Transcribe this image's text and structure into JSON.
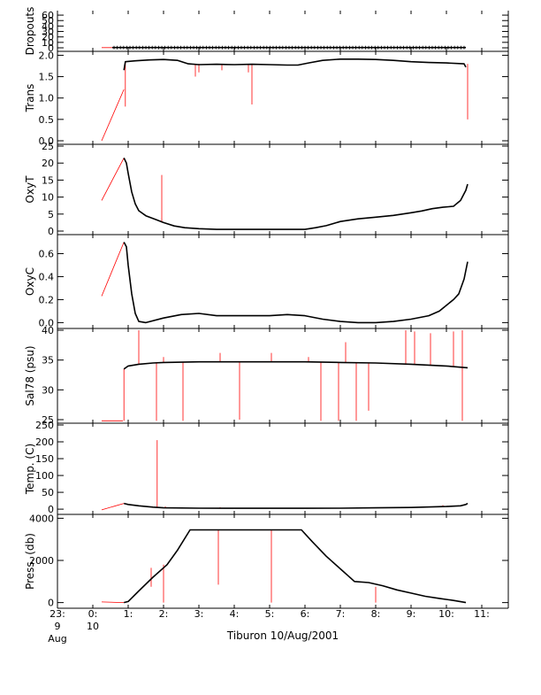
{
  "chart_data": {
    "type": "line",
    "caption": "Tiburon 10/Aug/2001",
    "time_axis": {
      "range_hours": [
        23.0,
        11.75
      ],
      "ticks": [
        {
          "hour": 23,
          "line1": "23:",
          "line2": "9",
          "line3": "Aug"
        },
        {
          "hour": 0,
          "line1": "0:",
          "line2": "10",
          "line3": ""
        },
        {
          "hour": 1,
          "line1": "1:",
          "line2": "",
          "line3": ""
        },
        {
          "hour": 2,
          "line1": "2:",
          "line2": "",
          "line3": ""
        },
        {
          "hour": 3,
          "line1": "3:",
          "line2": "",
          "line3": ""
        },
        {
          "hour": 4,
          "line1": "4:",
          "line2": "",
          "line3": ""
        },
        {
          "hour": 5,
          "line1": "5:",
          "line2": "",
          "line3": ""
        },
        {
          "hour": 6,
          "line1": "6:",
          "line2": "",
          "line3": ""
        },
        {
          "hour": 7,
          "line1": "7:",
          "line2": "",
          "line3": ""
        },
        {
          "hour": 8,
          "line1": "8:",
          "line2": "",
          "line3": ""
        },
        {
          "hour": 9,
          "line1": "9:",
          "line2": "",
          "line3": ""
        },
        {
          "hour": 10,
          "line1": "10:",
          "line2": "",
          "line3": ""
        },
        {
          "hour": 11,
          "line1": "11:",
          "line2": "",
          "line3": ""
        }
      ]
    },
    "colors": {
      "clean": "#000000",
      "raw": "#ff0000",
      "frame": "#000000"
    },
    "panels": [
      {
        "id": "dropouts",
        "ylabel": "Dropouts",
        "ylim": [
          0,
          65
        ],
        "yticks": [
          "0",
          "10",
          "20",
          "30",
          "40",
          "50",
          "60"
        ],
        "ytick_values": [
          0,
          10,
          20,
          30,
          40,
          50,
          60
        ],
        "clean": [
          [
            0.55,
            0.5
          ],
          [
            1.0,
            0.5
          ],
          [
            2.0,
            0.5
          ],
          [
            3.0,
            0.5
          ],
          [
            4.0,
            0.5
          ],
          [
            5.0,
            0.5
          ],
          [
            6.0,
            0.5
          ],
          [
            7.0,
            0.5
          ],
          [
            8.0,
            0.5
          ],
          [
            9.0,
            0.5
          ],
          [
            10.0,
            0.5
          ],
          [
            10.55,
            0.5
          ]
        ],
        "raw": [
          [
            0.25,
            0.3
          ],
          [
            0.55,
            0.3
          ]
        ],
        "spikes": []
      },
      {
        "id": "trans",
        "ylabel": "Trans",
        "ylim": [
          0,
          2.05
        ],
        "yticks": [
          "0.0",
          "0.5",
          "1.0",
          "1.5",
          "2.0"
        ],
        "ytick_values": [
          0,
          0.5,
          1.0,
          1.5,
          2.0
        ],
        "clean": [
          [
            0.88,
            1.65
          ],
          [
            0.92,
            1.85
          ],
          [
            1.2,
            1.87
          ],
          [
            1.6,
            1.89
          ],
          [
            2.0,
            1.9
          ],
          [
            2.4,
            1.88
          ],
          [
            2.7,
            1.8
          ],
          [
            3.0,
            1.78
          ],
          [
            3.5,
            1.79
          ],
          [
            4.0,
            1.78
          ],
          [
            4.5,
            1.79
          ],
          [
            5.0,
            1.78
          ],
          [
            5.5,
            1.77
          ],
          [
            5.8,
            1.77
          ],
          [
            6.1,
            1.82
          ],
          [
            6.5,
            1.88
          ],
          [
            7.0,
            1.91
          ],
          [
            7.5,
            1.91
          ],
          [
            8.0,
            1.9
          ],
          [
            8.5,
            1.88
          ],
          [
            9.0,
            1.85
          ],
          [
            9.5,
            1.83
          ],
          [
            10.0,
            1.82
          ],
          [
            10.5,
            1.8
          ],
          [
            10.55,
            1.72
          ]
        ],
        "raw": [
          [
            0.25,
            0.0
          ],
          [
            0.88,
            1.2
          ]
        ],
        "spikes": [
          [
            0.92,
            0.8,
            1.85
          ],
          [
            2.9,
            1.5,
            1.8
          ],
          [
            3.0,
            1.6,
            1.8
          ],
          [
            3.65,
            1.65,
            1.8
          ],
          [
            4.4,
            1.6,
            1.8
          ],
          [
            4.5,
            0.85,
            1.8
          ],
          [
            10.6,
            0.5,
            1.8
          ]
        ]
      },
      {
        "id": "oxyt",
        "ylabel": "OxyT",
        "ylim": [
          0,
          25
        ],
        "yticks": [
          "0",
          "5",
          "10",
          "15",
          "20",
          "25"
        ],
        "ytick_values": [
          0,
          5,
          10,
          15,
          20,
          25
        ],
        "clean": [
          [
            0.88,
            21.5
          ],
          [
            0.95,
            20.0
          ],
          [
            1.0,
            17.0
          ],
          [
            1.1,
            11.5
          ],
          [
            1.2,
            8.0
          ],
          [
            1.3,
            6.0
          ],
          [
            1.5,
            4.5
          ],
          [
            1.8,
            3.3
          ],
          [
            2.0,
            2.5
          ],
          [
            2.3,
            1.5
          ],
          [
            2.6,
            1.0
          ],
          [
            3.0,
            0.7
          ],
          [
            3.5,
            0.5
          ],
          [
            4.0,
            0.5
          ],
          [
            5.0,
            0.5
          ],
          [
            6.0,
            0.5
          ],
          [
            6.3,
            1.0
          ],
          [
            6.6,
            1.6
          ],
          [
            7.0,
            2.8
          ],
          [
            7.5,
            3.6
          ],
          [
            8.0,
            4.1
          ],
          [
            8.5,
            4.6
          ],
          [
            9.0,
            5.4
          ],
          [
            9.3,
            5.9
          ],
          [
            9.6,
            6.6
          ],
          [
            9.9,
            7.0
          ],
          [
            10.2,
            7.3
          ],
          [
            10.4,
            9.0
          ],
          [
            10.55,
            12.0
          ],
          [
            10.6,
            13.8
          ]
        ],
        "raw": [
          [
            0.25,
            9.0
          ],
          [
            0.88,
            21.5
          ]
        ],
        "spikes": [
          [
            1.95,
            2.5,
            16.5
          ]
        ]
      },
      {
        "id": "oxyc",
        "ylabel": "OxyC",
        "ylim": [
          -0.02,
          0.75
        ],
        "yticks": [
          "0.0",
          "0.2",
          "0.4",
          "0.6"
        ],
        "ytick_values": [
          0,
          0.2,
          0.4,
          0.6
        ],
        "clean": [
          [
            0.88,
            0.7
          ],
          [
            0.95,
            0.66
          ],
          [
            1.0,
            0.5
          ],
          [
            1.1,
            0.25
          ],
          [
            1.2,
            0.08
          ],
          [
            1.3,
            0.01
          ],
          [
            1.5,
            0.0
          ],
          [
            2.0,
            0.04
          ],
          [
            2.5,
            0.07
          ],
          [
            3.0,
            0.08
          ],
          [
            3.5,
            0.06
          ],
          [
            4.0,
            0.06
          ],
          [
            4.5,
            0.06
          ],
          [
            5.0,
            0.06
          ],
          [
            5.5,
            0.07
          ],
          [
            6.0,
            0.06
          ],
          [
            6.5,
            0.03
          ],
          [
            7.0,
            0.01
          ],
          [
            7.5,
            0.0
          ],
          [
            8.0,
            0.0
          ],
          [
            8.5,
            0.01
          ],
          [
            9.0,
            0.03
          ],
          [
            9.5,
            0.06
          ],
          [
            9.8,
            0.1
          ],
          [
            10.0,
            0.15
          ],
          [
            10.2,
            0.2
          ],
          [
            10.35,
            0.25
          ],
          [
            10.5,
            0.38
          ],
          [
            10.6,
            0.53
          ]
        ],
        "raw": [
          [
            0.25,
            0.23
          ],
          [
            0.88,
            0.7
          ]
        ],
        "spikes": []
      },
      {
        "id": "salinity",
        "ylabel": "Sal78 (psu)",
        "ylim": [
          25,
          40
        ],
        "yticks": [
          "25",
          "30",
          "35",
          "40"
        ],
        "ytick_values": [
          25,
          30,
          35,
          40
        ],
        "clean": [
          [
            0.88,
            33.5
          ],
          [
            1.0,
            34.0
          ],
          [
            1.3,
            34.3
          ],
          [
            1.7,
            34.5
          ],
          [
            2.0,
            34.6
          ],
          [
            3.0,
            34.7
          ],
          [
            4.0,
            34.7
          ],
          [
            5.0,
            34.7
          ],
          [
            6.0,
            34.7
          ],
          [
            7.0,
            34.6
          ],
          [
            8.0,
            34.5
          ],
          [
            9.0,
            34.3
          ],
          [
            10.0,
            34.0
          ],
          [
            10.6,
            33.7
          ]
        ],
        "raw": [
          [
            0.25,
            24.8
          ],
          [
            0.85,
            24.8
          ]
        ],
        "spikes": [
          [
            0.88,
            24.8,
            33.5
          ],
          [
            1.3,
            34.3,
            40.0
          ],
          [
            1.8,
            24.8,
            34.5
          ],
          [
            2.0,
            34.6,
            35.5
          ],
          [
            2.55,
            24.8,
            34.6
          ],
          [
            3.6,
            34.7,
            36.2
          ],
          [
            4.15,
            25.0,
            34.7
          ],
          [
            5.05,
            34.7,
            36.2
          ],
          [
            6.1,
            34.7,
            35.5
          ],
          [
            6.45,
            24.8,
            34.7
          ],
          [
            6.95,
            24.8,
            34.6
          ],
          [
            7.15,
            34.6,
            38.0
          ],
          [
            7.45,
            24.8,
            34.6
          ],
          [
            7.8,
            26.5,
            34.5
          ],
          [
            8.85,
            34.3,
            40.0
          ],
          [
            9.1,
            34.3,
            39.8
          ],
          [
            9.55,
            34.2,
            39.5
          ],
          [
            10.2,
            34.0,
            39.8
          ],
          [
            10.45,
            24.8,
            40.0
          ]
        ]
      },
      {
        "id": "temperature",
        "ylabel": "Temp. (C)",
        "ylim": [
          -5,
          250
        ],
        "yticks": [
          "0",
          "50",
          "100",
          "150",
          "200",
          "250"
        ],
        "ytick_values": [
          0,
          50,
          100,
          150,
          200,
          250
        ],
        "clean": [
          [
            0.88,
            17.0
          ],
          [
            1.0,
            14.0
          ],
          [
            1.3,
            10.0
          ],
          [
            1.7,
            6.0
          ],
          [
            2.0,
            4.0
          ],
          [
            3.0,
            3.0
          ],
          [
            4.0,
            2.5
          ],
          [
            5.0,
            2.5
          ],
          [
            6.0,
            2.5
          ],
          [
            7.0,
            3.0
          ],
          [
            8.0,
            4.0
          ],
          [
            9.0,
            5.0
          ],
          [
            10.0,
            8.0
          ],
          [
            10.4,
            10.0
          ],
          [
            10.55,
            14.0
          ],
          [
            10.6,
            17.0
          ]
        ],
        "raw": [
          [
            0.25,
            -2.0
          ],
          [
            0.88,
            17.0
          ]
        ],
        "spikes": [
          [
            1.82,
            5.0,
            205.0
          ],
          [
            2.05,
            3.0,
            8.0
          ],
          [
            3.6,
            2.5,
            6.0
          ],
          [
            9.9,
            8.0,
            12.0
          ]
        ]
      },
      {
        "id": "pressure",
        "ylabel": "Press. (db)",
        "ylim": [
          -100,
          4100
        ],
        "yticks": [
          "0",
          "2000",
          "4000"
        ],
        "ytick_values": [
          0,
          2000,
          4000
        ],
        "clean": [
          [
            0.88,
            0.0
          ],
          [
            1.0,
            50.0
          ],
          [
            1.3,
            550.0
          ],
          [
            1.7,
            1200.0
          ],
          [
            2.1,
            1800.0
          ],
          [
            2.4,
            2500.0
          ],
          [
            2.75,
            3450.0
          ],
          [
            3.5,
            3450.0
          ],
          [
            4.5,
            3450.0
          ],
          [
            5.5,
            3450.0
          ],
          [
            5.9,
            3450.0
          ],
          [
            6.2,
            2900.0
          ],
          [
            6.6,
            2200.0
          ],
          [
            7.0,
            1600.0
          ],
          [
            7.3,
            1150.0
          ],
          [
            7.4,
            1000.0
          ],
          [
            7.8,
            950.0
          ],
          [
            8.2,
            800.0
          ],
          [
            8.6,
            600.0
          ],
          [
            9.0,
            450.0
          ],
          [
            9.4,
            300.0
          ],
          [
            9.8,
            200.0
          ],
          [
            10.2,
            100.0
          ],
          [
            10.55,
            0.0
          ]
        ],
        "raw": [
          [
            0.25,
            30.0
          ],
          [
            0.88,
            0.0
          ]
        ],
        "spikes": [
          [
            1.65,
            750.0,
            1650.0
          ],
          [
            2.0,
            0.0,
            1800.0
          ],
          [
            3.55,
            850.0,
            3450.0
          ],
          [
            5.05,
            0.0,
            3450.0
          ],
          [
            8.0,
            0.0,
            750.0
          ]
        ]
      }
    ]
  }
}
